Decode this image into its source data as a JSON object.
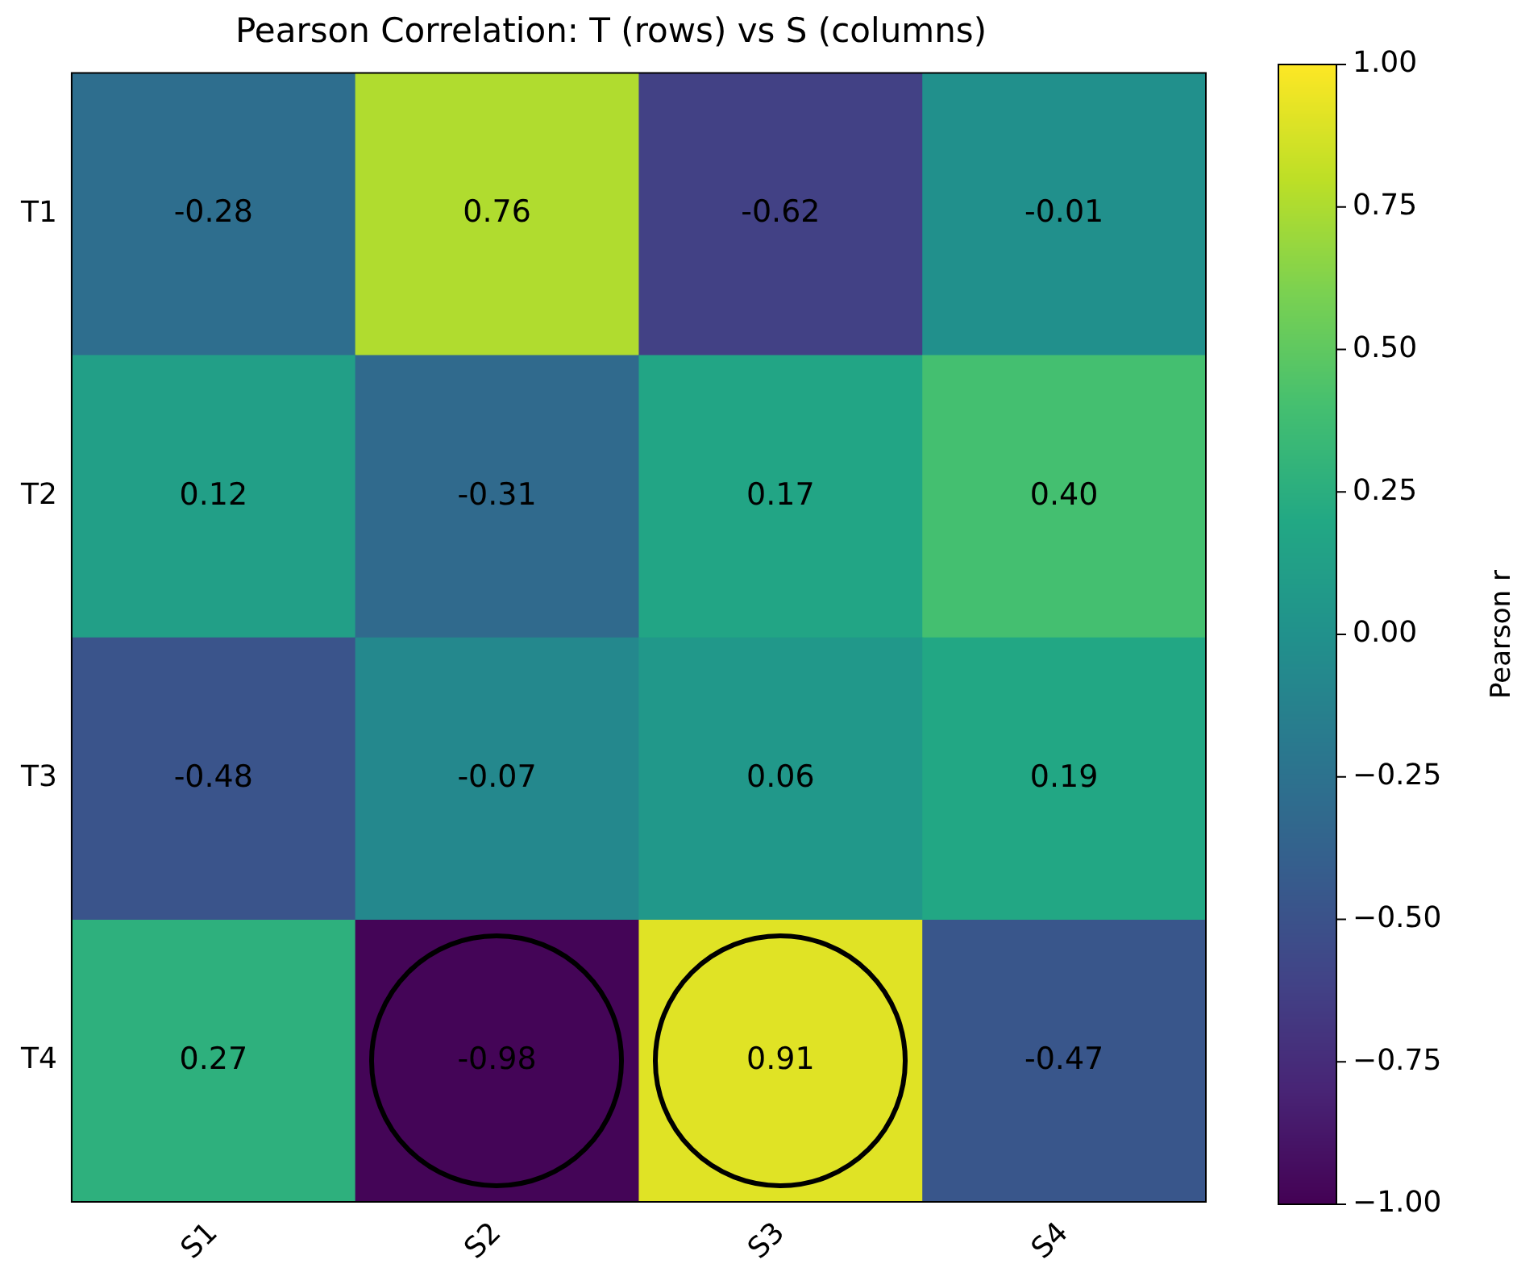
{
  "chart_data": {
    "type": "heatmap",
    "title": "Pearson Correlation: T (rows) vs S (columns)",
    "clabel": "Pearson r",
    "categories": [
      "S1",
      "S2",
      "S3",
      "S4"
    ],
    "y_categories": [
      "T1",
      "T2",
      "T3",
      "T4"
    ],
    "cells": [
      [
        -0.28,
        0.76,
        -0.62,
        -0.01
      ],
      [
        0.12,
        -0.31,
        0.17,
        0.4
      ],
      [
        -0.48,
        -0.07,
        0.06,
        0.19
      ],
      [
        0.27,
        -0.98,
        0.91,
        -0.47
      ]
    ],
    "cell_labels": [
      [
        "-0.28",
        "0.76",
        "-0.62",
        "-0.01"
      ],
      [
        "0.12",
        "-0.31",
        "0.17",
        "0.40"
      ],
      [
        "-0.48",
        "-0.07",
        "0.06",
        "0.19"
      ],
      [
        "0.27",
        "-0.98",
        "0.91",
        "-0.47"
      ]
    ],
    "clim": [
      -1,
      1
    ],
    "cticks": [
      {
        "value": -1,
        "label": "−1.00"
      },
      {
        "value": -0.75,
        "label": "−0.75"
      },
      {
        "value": -0.5,
        "label": "−0.50"
      },
      {
        "value": -0.25,
        "label": "−0.25"
      },
      {
        "value": 0,
        "label": "0.00"
      },
      {
        "value": 0.25,
        "label": "0.25"
      },
      {
        "value": 0.5,
        "label": "0.50"
      },
      {
        "value": 0.75,
        "label": "0.75"
      },
      {
        "value": 1,
        "label": "1.00"
      }
    ],
    "grid": false
  }
}
